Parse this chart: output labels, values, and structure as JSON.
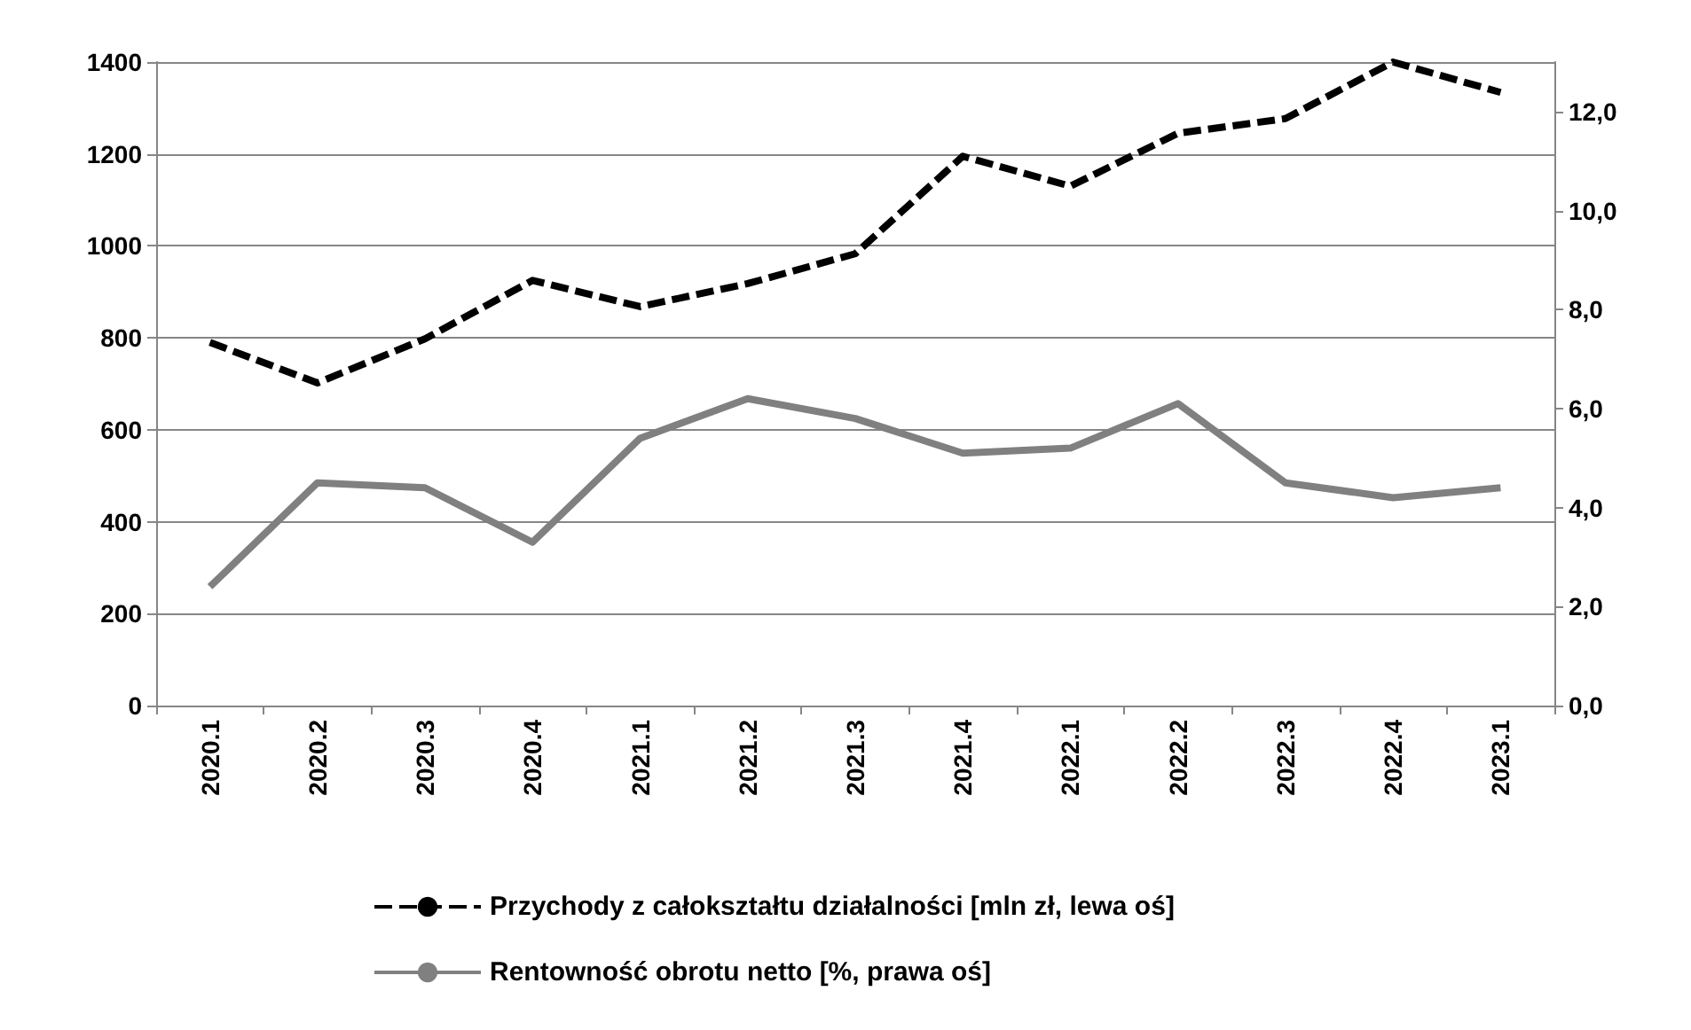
{
  "chart_data": {
    "type": "line",
    "categories": [
      "2020.1",
      "2020.2",
      "2020.3",
      "2020.4",
      "2021.1",
      "2021.2",
      "2021.3",
      "2021.4",
      "2022.1",
      "2022.2",
      "2022.3",
      "2022.4",
      "2023.1"
    ],
    "series": [
      {
        "name": "Przychody z całokształtu działalności [mln zł, lewa oś]",
        "color": "#000000",
        "line_style": "dashed",
        "values": [
          790,
          702,
          798,
          925,
          868,
          918,
          983,
          1195,
          1130,
          1245,
          1277,
          1400,
          1334
        ]
      },
      {
        "name": "Rentowność obrotu netto [%, prawa oś]",
        "color": "#808080",
        "line_style": "solid",
        "axis": "y2",
        "values": [
          2.4,
          4.5,
          4.4,
          3.3,
          5.4,
          6.2,
          5.8,
          5.1,
          5.2,
          6.1,
          4.5,
          4.2,
          4.4
        ]
      }
    ],
    "ylim": [
      0,
      1400
    ],
    "yticks": [
      0,
      200,
      400,
      600,
      800,
      1000,
      1200,
      1400
    ],
    "y2lim": [
      0,
      13
    ],
    "y2ticks": [
      {
        "value": 0,
        "label": "0,0"
      },
      {
        "value": 2,
        "label": "2,0"
      },
      {
        "value": 4,
        "label": "4,0"
      },
      {
        "value": 6,
        "label": "6,0"
      },
      {
        "value": 8,
        "label": "8,0"
      },
      {
        "value": 10,
        "label": "10,0"
      },
      {
        "value": 12,
        "label": "12,0"
      }
    ],
    "grid": "y",
    "legend": "bottom",
    "marker": "none"
  }
}
